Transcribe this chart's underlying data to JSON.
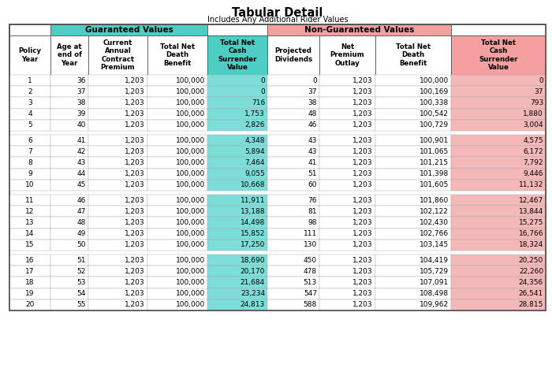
{
  "title": "Tabular Detail",
  "subtitle": "Includes Any Additional Rider Values",
  "col_labels": [
    "Policy\nYear",
    "Age at\nend of\nYear",
    "Current\nAnnual\nContract\nPremium",
    "Total Net\nDeath\nBenefit",
    "Total Net\nCash\nSurrender\nValue",
    "Projected\nDividends",
    "Net\nPremium\nOutlay",
    "Total Net\nDeath\nBenefit",
    "Total Net\nCash\nSurrender\nValue"
  ],
  "teal_header_color": "#4dcdc3",
  "pink_header_color": "#f5a0a0",
  "teal_cell_color": "#7dddd8",
  "pink_cell_color": "#f5b8b8",
  "border_color": "#666666",
  "rows": [
    [
      1,
      36,
      "1,203",
      "100,000",
      "0",
      0,
      "1,203",
      "100,000",
      "0"
    ],
    [
      2,
      37,
      "1,203",
      "100,000",
      "0",
      37,
      "1,203",
      "100,169",
      "37"
    ],
    [
      3,
      38,
      "1,203",
      "100,000",
      "716",
      38,
      "1,203",
      "100,338",
      "793"
    ],
    [
      4,
      39,
      "1,203",
      "100,000",
      "1,753",
      48,
      "1,203",
      "100,542",
      "1,880"
    ],
    [
      5,
      40,
      "1,203",
      "100,000",
      "2,826",
      46,
      "1,203",
      "100,729",
      "3,004"
    ],
    [
      6,
      41,
      "1,203",
      "100,000",
      "4,348",
      43,
      "1,203",
      "100,901",
      "4,575"
    ],
    [
      7,
      42,
      "1,203",
      "100,000",
      "5,894",
      43,
      "1,203",
      "101,065",
      "6,172"
    ],
    [
      8,
      43,
      "1,203",
      "100,000",
      "7,464",
      41,
      "1,203",
      "101,215",
      "7,792"
    ],
    [
      9,
      44,
      "1,203",
      "100,000",
      "9,055",
      51,
      "1,203",
      "101,398",
      "9,446"
    ],
    [
      10,
      45,
      "1,203",
      "100,000",
      "10,668",
      60,
      "1,203",
      "101,605",
      "11,132"
    ],
    [
      11,
      46,
      "1,203",
      "100,000",
      "11,911",
      76,
      "1,203",
      "101,860",
      "12,467"
    ],
    [
      12,
      47,
      "1,203",
      "100,000",
      "13,188",
      81,
      "1,203",
      "102,122",
      "13,844"
    ],
    [
      13,
      48,
      "1,203",
      "100,000",
      "14,498",
      98,
      "1,203",
      "102,430",
      "15,275"
    ],
    [
      14,
      49,
      "1,203",
      "100,000",
      "15,852",
      111,
      "1,203",
      "102,766",
      "16,766"
    ],
    [
      15,
      50,
      "1,203",
      "100,000",
      "17,250",
      130,
      "1,203",
      "103,145",
      "18,324"
    ],
    [
      16,
      51,
      "1,203",
      "100,000",
      "18,690",
      450,
      "1,203",
      "104,419",
      "20,250"
    ],
    [
      17,
      52,
      "1,203",
      "100,000",
      "20,170",
      478,
      "1,203",
      "105,729",
      "22,260"
    ],
    [
      18,
      53,
      "1,203",
      "100,000",
      "21,684",
      513,
      "1,203",
      "107,091",
      "24,356"
    ],
    [
      19,
      54,
      "1,203",
      "100,000",
      "23,234",
      547,
      "1,203",
      "108,498",
      "26,541"
    ],
    [
      20,
      55,
      "1,203",
      "100,000",
      "24,813",
      588,
      "1,203",
      "109,962",
      "28,815"
    ]
  ]
}
